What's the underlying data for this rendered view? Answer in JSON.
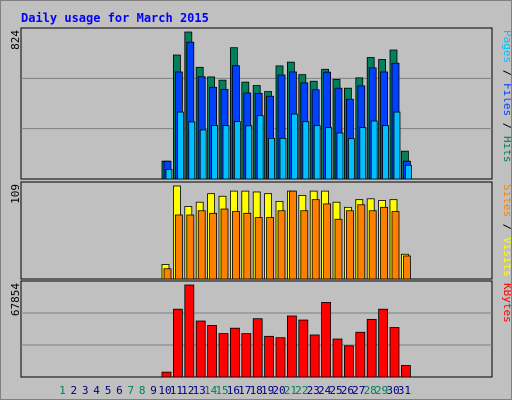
{
  "chart_data": {
    "type": "bar",
    "title": "Daily usage for March 2015",
    "categories": [
      "1",
      "2",
      "3",
      "4",
      "5",
      "6",
      "7",
      "8",
      "9",
      "10",
      "11",
      "12",
      "13",
      "14",
      "15",
      "16",
      "17",
      "18",
      "19",
      "20",
      "21",
      "22",
      "23",
      "24",
      "25",
      "26",
      "27",
      "28",
      "29",
      "30",
      "31"
    ],
    "weekend_days": [
      "1",
      "7",
      "8",
      "14",
      "15",
      "21",
      "22",
      "28",
      "29"
    ],
    "panels": [
      {
        "id": "hits",
        "ymax_label": "824",
        "ymax": 824,
        "legend": [
          "Hits",
          "Files",
          "Pages"
        ],
        "series": [
          {
            "name": "Hits",
            "color": "#00805c",
            "values": [
              0,
              0,
              0,
              0,
              0,
              0,
              0,
              0,
              0,
              100,
              695,
              824,
              626,
              572,
              554,
              736,
              543,
              524,
              490,
              634,
              655,
              585,
              548,
              615,
              558,
              509,
              567,
              681,
              670,
              723,
              156
            ]
          },
          {
            "name": "Files",
            "color": "#0040ff",
            "values": [
              0,
              0,
              0,
              0,
              0,
              0,
              0,
              0,
              0,
              100,
              600,
              767,
              573,
              514,
              502,
              635,
              482,
              480,
              464,
              583,
              600,
              539,
              500,
              599,
              509,
              447,
              522,
              623,
              600,
              649,
              100
            ]
          },
          {
            "name": "Pages",
            "color": "#00c0ff",
            "values": [
              0,
              0,
              0,
              0,
              0,
              0,
              0,
              0,
              0,
              54,
              375,
              320,
              275,
              300,
              299,
              322,
              298,
              355,
              228,
              228,
              364,
              321,
              299,
              288,
              258,
              226,
              288,
              325,
              299,
              375,
              77
            ]
          }
        ]
      },
      {
        "id": "visits",
        "ymax_label": "109",
        "ymax": 109,
        "legend": [
          "Visits",
          "Sites"
        ],
        "series": [
          {
            "name": "Visits",
            "color": "#ffff00",
            "values": [
              0,
              0,
              0,
              0,
              0,
              0,
              0,
              0,
              0,
              17,
              109,
              85,
              90,
              100,
              97,
              103,
              103,
              102,
              100,
              91,
              103,
              98,
              103,
              103,
              90,
              84,
              93,
              94,
              92,
              93,
              29
            ]
          },
          {
            "name": "Sites",
            "color": "#ff8000",
            "values": [
              0,
              0,
              0,
              0,
              0,
              0,
              0,
              0,
              0,
              12,
              75,
              75,
              80,
              77,
              82,
              79,
              77,
              72,
              72,
              80,
              103,
              80,
              93,
              88,
              70,
              80,
              87,
              80,
              84,
              79,
              27
            ]
          }
        ]
      },
      {
        "id": "kbytes",
        "ymax_label": "67854",
        "ymax": 67854,
        "legend": [
          "KBytes"
        ],
        "series": [
          {
            "name": "KBytes",
            "color": "#ff0000",
            "values": [
              0,
              0,
              0,
              0,
              0,
              0,
              0,
              0,
              0,
              3600,
              50000,
              67854,
              41300,
              38000,
              32000,
              36000,
              32000,
              43000,
              30000,
              29000,
              45000,
              42000,
              31000,
              55000,
              28000,
              23000,
              33000,
              42500,
              50000,
              36500,
              8500
            ]
          }
        ]
      }
    ],
    "colors": {
      "title": "#0000ff",
      "weekday_label": "#000080",
      "weekend_label": "#00805c",
      "panel_bg": "#c0c0c0",
      "grid": "#808080"
    }
  }
}
